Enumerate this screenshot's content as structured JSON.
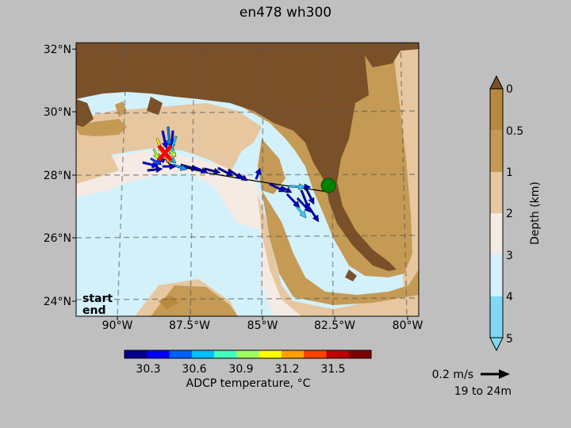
{
  "title": "en478 wh300",
  "map": {
    "lat_ticks": [
      "32°N",
      "30°N",
      "28°N",
      "26°N",
      "24°N"
    ],
    "lon_ticks": [
      "90°W",
      "87.5°W",
      "85°W",
      "82.5°W",
      "80°W"
    ],
    "lon_range": [
      -91.3,
      -79.7
    ],
    "lat_range": [
      23.6,
      32.2
    ],
    "start_label": "start",
    "end_label": "end",
    "start_color": "#008000",
    "end_color": "#ff0000",
    "start_position": {
      "lon": -82.6,
      "lat": 27.8
    },
    "end_position": {
      "lon": -88.7,
      "lat": 28.7
    }
  },
  "colorbar_temp": {
    "label": "ADCP temperature, °C",
    "ticks": [
      "30.3",
      "30.6",
      "30.9",
      "31.2",
      "31.5"
    ],
    "range": [
      30.1,
      31.7
    ]
  },
  "colorbar_depth": {
    "label": "Depth (km)",
    "ticks": [
      "0",
      "0.5",
      "1",
      "2",
      "3",
      "4",
      "5"
    ],
    "colors": [
      "#b8893c",
      "#c49a55",
      "#e6c7a0",
      "#f6eae4",
      "#d3f1fb",
      "#80d8f5"
    ]
  },
  "reference_vector": {
    "label": "0.2 m/s",
    "depth_label": "19 to 24m"
  }
}
